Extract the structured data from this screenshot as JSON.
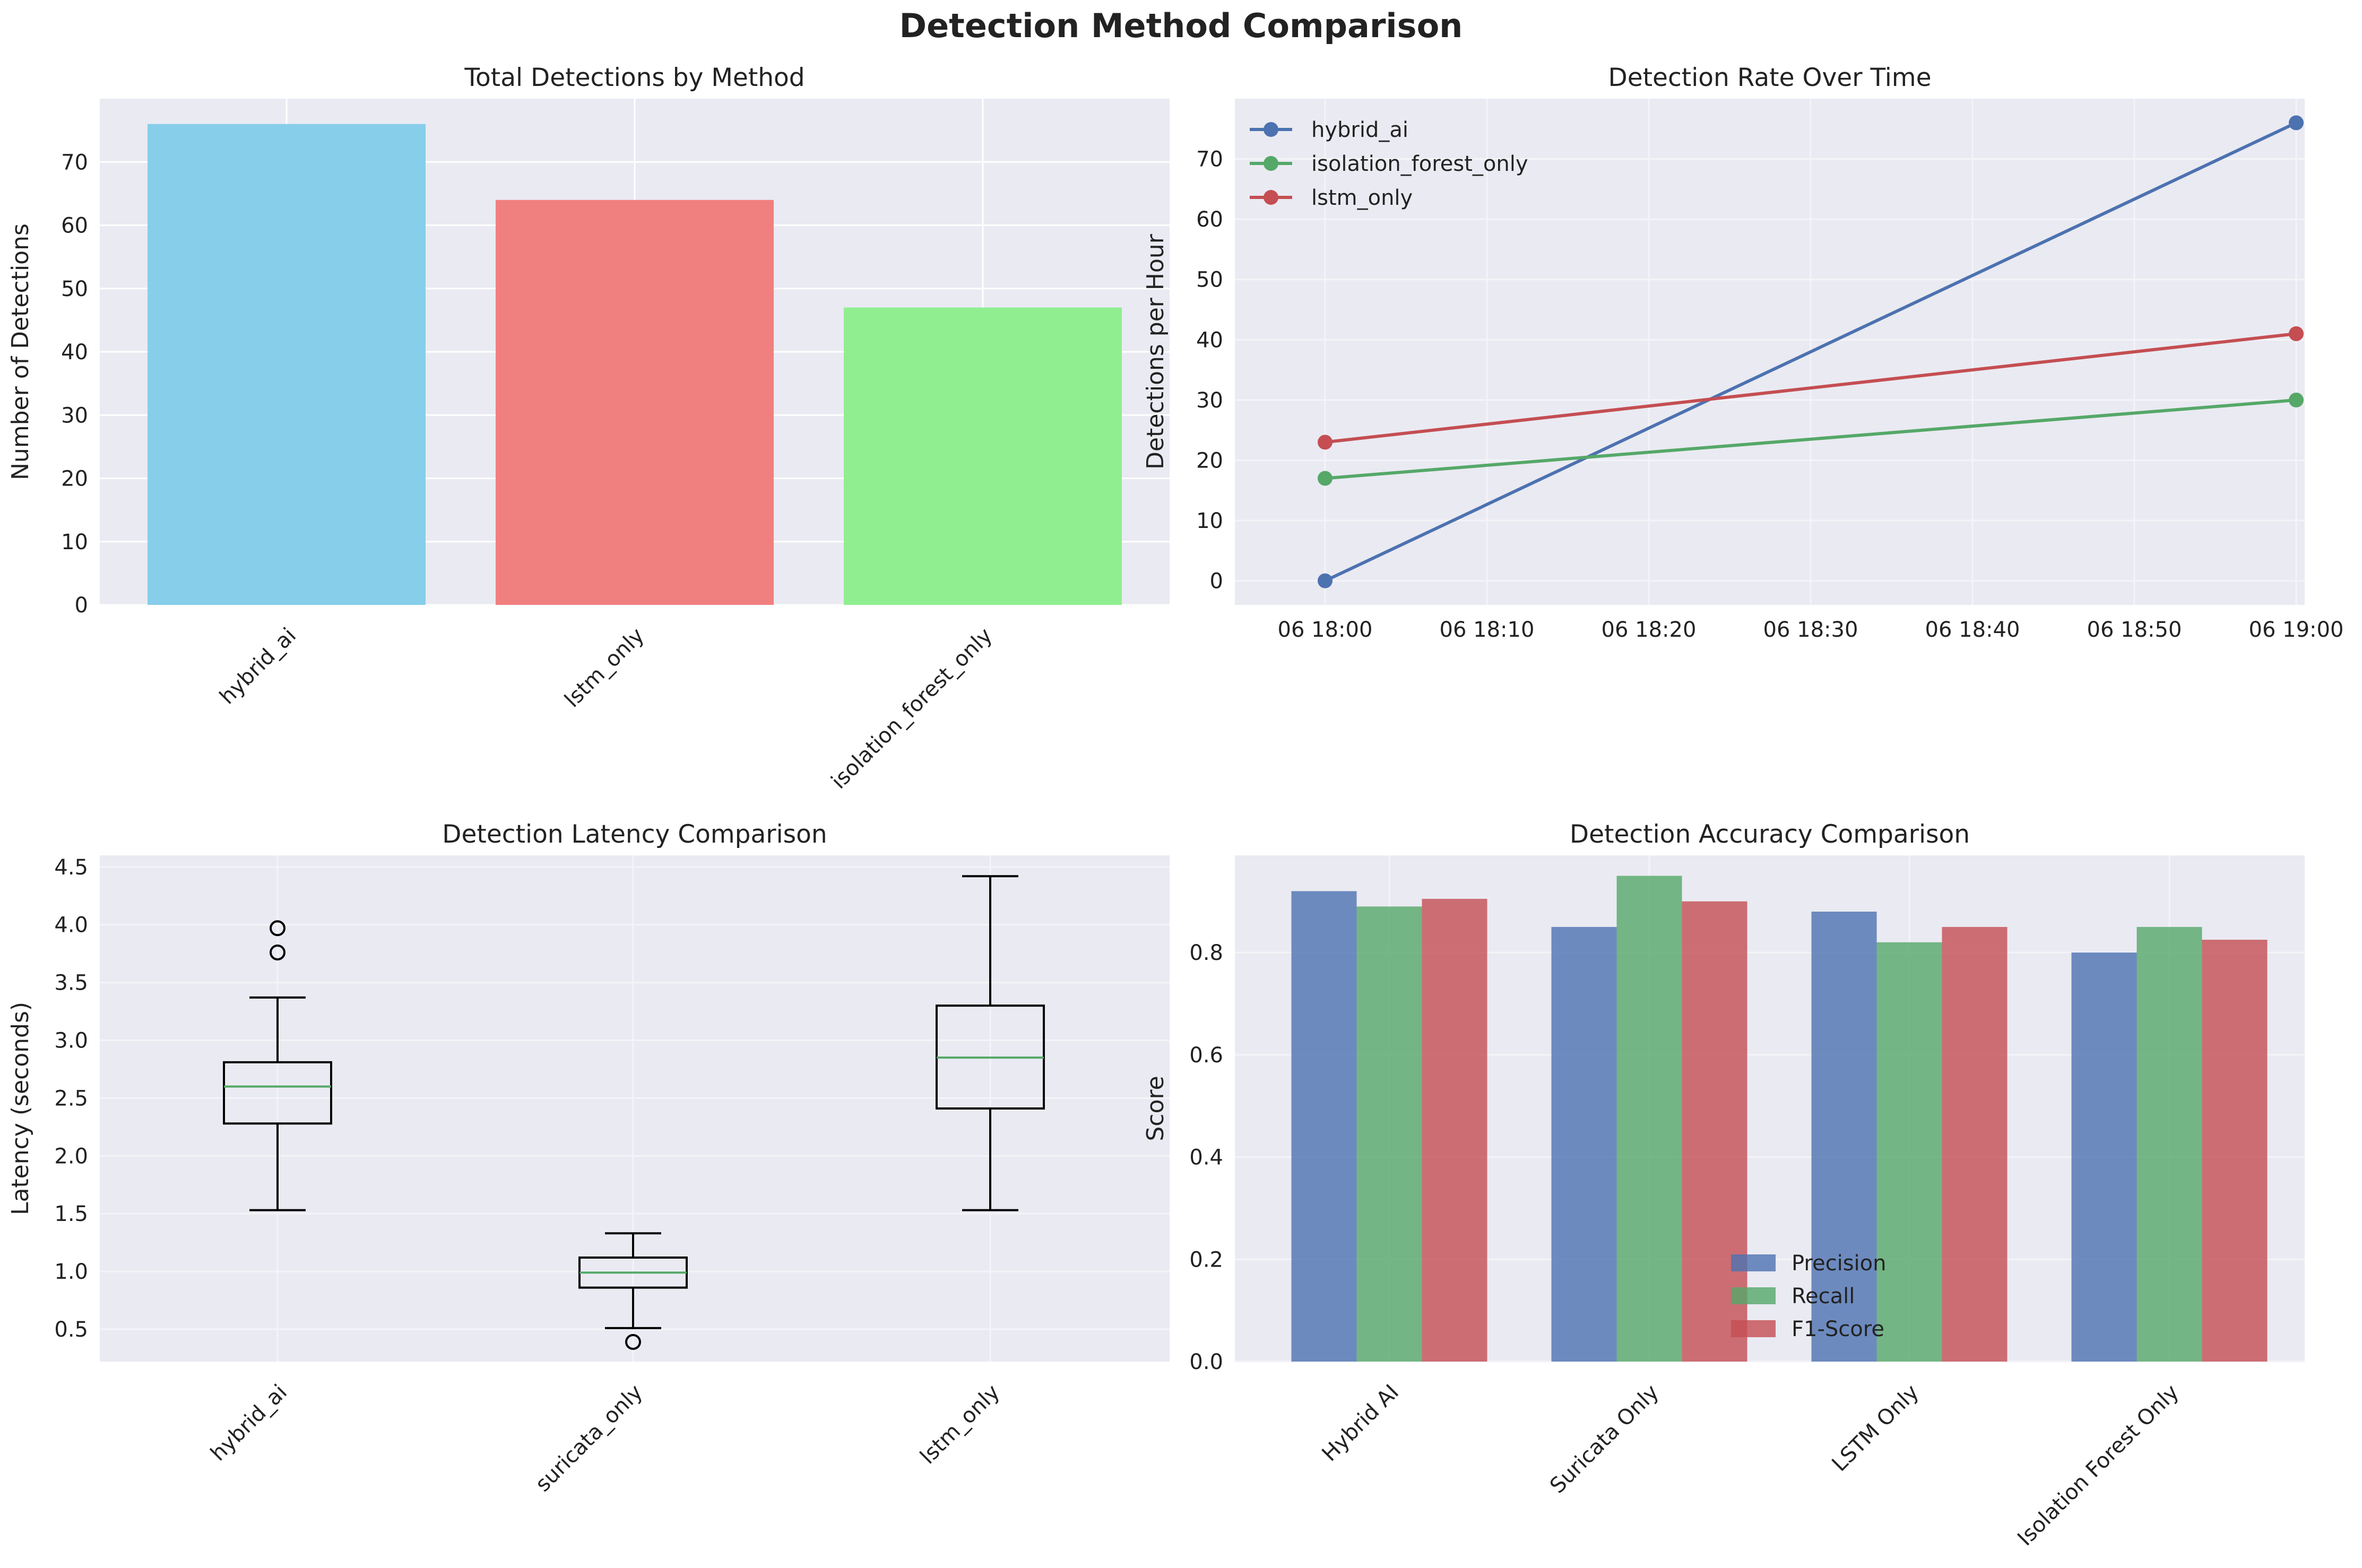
{
  "suptitle": "Detection Method Comparison",
  "chart_data": [
    {
      "type": "bar",
      "title": "Total Detections by Method",
      "xlabel": "",
      "ylabel": "Number of Detections",
      "categories": [
        "hybrid_ai",
        "lstm_only",
        "isolation_forest_only"
      ],
      "values": [
        76,
        64,
        47
      ],
      "colors": [
        "#87ceeb",
        "#f08080",
        "#90ee90"
      ],
      "ylim": [
        0,
        80
      ],
      "yticks": [
        0,
        10,
        20,
        30,
        40,
        50,
        60,
        70
      ],
      "grid": true
    },
    {
      "type": "line",
      "title": "Detection Rate Over Time",
      "xlabel": "",
      "ylabel": "Detections per Hour",
      "x": [
        "06 18:00",
        "06 19:00"
      ],
      "xticks": [
        "06 18:00",
        "06 18:10",
        "06 18:20",
        "06 18:30",
        "06 18:40",
        "06 18:50",
        "06 19:00"
      ],
      "series": [
        {
          "name": "hybrid_ai",
          "values": [
            0,
            76
          ],
          "color": "#4c72b0"
        },
        {
          "name": "isolation_forest_only",
          "values": [
            17,
            30
          ],
          "color": "#55a868"
        },
        {
          "name": "lstm_only",
          "values": [
            23,
            41
          ],
          "color": "#c44e52"
        }
      ],
      "ylim": [
        -4,
        80
      ],
      "yticks": [
        0,
        10,
        20,
        30,
        40,
        50,
        60,
        70
      ],
      "legend": "top-left",
      "grid": true
    },
    {
      "type": "box",
      "title": "Detection Latency Comparison",
      "xlabel": "",
      "ylabel": "Latency (seconds)",
      "categories": [
        "hybrid_ai",
        "suricata_only",
        "lstm_only"
      ],
      "boxes": [
        {
          "whisker_low": 1.53,
          "q1": 2.28,
          "median": 2.6,
          "q3": 2.81,
          "whisker_high": 3.37,
          "fliers": [
            3.76,
            3.97
          ]
        },
        {
          "whisker_low": 0.51,
          "q1": 0.86,
          "median": 0.99,
          "q3": 1.12,
          "whisker_high": 1.33,
          "fliers": [
            0.39
          ]
        },
        {
          "whisker_low": 1.53,
          "q1": 2.41,
          "median": 2.85,
          "q3": 3.3,
          "whisker_high": 4.42,
          "fliers": []
        }
      ],
      "ylim": [
        0.22,
        4.6
      ],
      "yticks": [
        "0.5",
        "1.0",
        "1.5",
        "2.0",
        "2.5",
        "3.0",
        "3.5",
        "4.0",
        "4.5"
      ],
      "grid": true
    },
    {
      "type": "bar",
      "title": "Detection Accuracy Comparison",
      "xlabel": "",
      "ylabel": "Score",
      "categories": [
        "Hybrid AI",
        "Suricata Only",
        "LSTM Only",
        "Isolation Forest Only"
      ],
      "series": [
        {
          "name": "Precision",
          "values": [
            0.92,
            0.85,
            0.88,
            0.8
          ],
          "color": "#4c72b0"
        },
        {
          "name": "Recall",
          "values": [
            0.89,
            0.95,
            0.82,
            0.85
          ],
          "color": "#55a868"
        },
        {
          "name": "F1-Score",
          "values": [
            0.905,
            0.9,
            0.85,
            0.825
          ],
          "color": "#c44e52"
        }
      ],
      "ylim": [
        0,
        0.99
      ],
      "yticks": [
        "0.0",
        "0.2",
        "0.4",
        "0.6",
        "0.8"
      ],
      "legend": "lower-center",
      "grid": true
    }
  ]
}
